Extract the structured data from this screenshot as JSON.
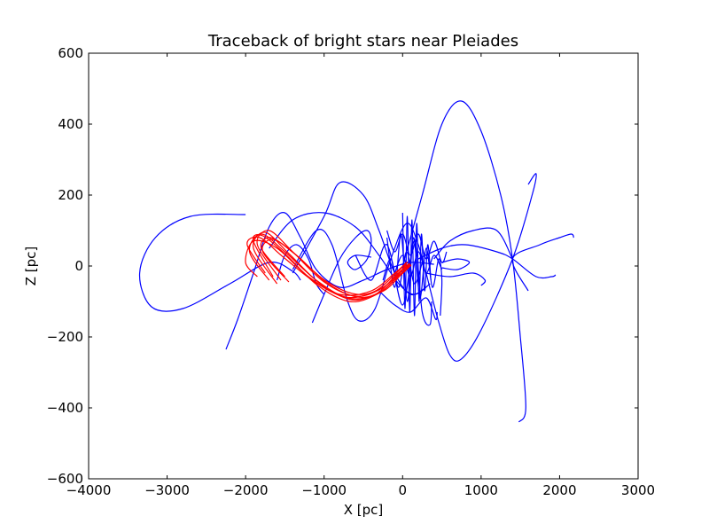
{
  "chart_data": {
    "type": "line",
    "title": "Traceback of bright stars near Pleiades",
    "xlabel": "X [pc]",
    "ylabel": "Z [pc]",
    "xlim": [
      -4000,
      3000
    ],
    "ylim": [
      -600,
      600
    ],
    "xticks": [
      -4000,
      -3000,
      -2000,
      -1000,
      0,
      1000,
      2000,
      3000
    ],
    "yticks": [
      -600,
      -400,
      -200,
      0,
      200,
      400,
      600
    ],
    "xtick_labels": [
      "−4000",
      "−3000",
      "−2000",
      "−1000",
      "0",
      "1000",
      "2000",
      "3000"
    ],
    "ytick_labels": [
      "−600",
      "−400",
      "−200",
      "0",
      "200",
      "400",
      "600"
    ],
    "grid": false,
    "series_colors": {
      "field_stars": "#0000ff",
      "pleiades_members": "#ff0000"
    },
    "series": [
      {
        "group": "field_stars",
        "color": "#0000ff",
        "points": [
          [
            -2000,
            145
          ],
          [
            -2700,
            140
          ],
          [
            -3150,
            80
          ],
          [
            -3350,
            -20
          ],
          [
            -3200,
            -115
          ],
          [
            -2800,
            -120
          ],
          [
            -2200,
            -50
          ],
          [
            -1700,
            10
          ],
          [
            -1400,
            -15
          ],
          [
            -1300,
            -40
          ]
        ]
      },
      {
        "group": "field_stars",
        "color": "#0000ff",
        "points": [
          [
            -2250,
            -235
          ],
          [
            -2100,
            -150
          ],
          [
            -1900,
            -20
          ],
          [
            -1700,
            110
          ],
          [
            -1500,
            150
          ],
          [
            -1300,
            80
          ],
          [
            -1100,
            -10
          ],
          [
            -800,
            -60
          ],
          [
            -500,
            -40
          ],
          [
            -200,
            -10
          ],
          [
            100,
            10
          ],
          [
            400,
            5
          ]
        ]
      },
      {
        "group": "field_stars",
        "color": "#0000ff",
        "points": [
          [
            -1700,
            50
          ],
          [
            -1400,
            130
          ],
          [
            -1000,
            150
          ],
          [
            -600,
            110
          ],
          [
            -300,
            30
          ],
          [
            -50,
            -50
          ],
          [
            150,
            -80
          ],
          [
            350,
            -50
          ]
        ]
      },
      {
        "group": "field_stars",
        "color": "#0000ff",
        "points": [
          [
            -1400,
            -20
          ],
          [
            -1000,
            140
          ],
          [
            -800,
            235
          ],
          [
            -500,
            200
          ],
          [
            -300,
            100
          ],
          [
            -100,
            -20
          ],
          [
            100,
            -80
          ],
          [
            300,
            -60
          ]
        ]
      },
      {
        "group": "field_stars",
        "color": "#0000ff",
        "points": [
          [
            -1400,
            -10
          ],
          [
            -1100,
            100
          ],
          [
            -900,
            60
          ],
          [
            -700,
            -100
          ],
          [
            -550,
            -155
          ],
          [
            -350,
            -120
          ],
          [
            -150,
            20
          ],
          [
            50,
            120
          ],
          [
            200,
            60
          ],
          [
            300,
            -30
          ]
        ]
      },
      {
        "group": "field_stars",
        "color": "#0000ff",
        "points": [
          [
            -1150,
            -160
          ],
          [
            -1000,
            -80
          ],
          [
            -800,
            20
          ],
          [
            -600,
            80
          ],
          [
            -450,
            100
          ],
          [
            -400,
            70
          ],
          [
            -450,
            20
          ],
          [
            -600,
            -10
          ],
          [
            -700,
            10
          ],
          [
            -600,
            30
          ],
          [
            -400,
            25
          ]
        ]
      },
      {
        "group": "field_stars",
        "color": "#0000ff",
        "points": [
          [
            -1600,
            -40
          ],
          [
            -1500,
            30
          ],
          [
            -1350,
            60
          ],
          [
            -1200,
            20
          ],
          [
            -1100,
            -50
          ],
          [
            -1000,
            -80
          ]
        ]
      },
      {
        "group": "field_stars",
        "color": "#0000ff",
        "points": [
          [
            0,
            0
          ],
          [
            250,
            200
          ],
          [
            500,
            400
          ],
          [
            750,
            465
          ],
          [
            1000,
            380
          ],
          [
            1250,
            200
          ],
          [
            1400,
            20
          ],
          [
            1500,
            -200
          ],
          [
            1570,
            -400
          ],
          [
            1480,
            -440
          ]
        ]
      },
      {
        "group": "field_stars",
        "color": "#0000ff",
        "points": [
          [
            1600,
            230
          ],
          [
            1700,
            260
          ],
          [
            1650,
            200
          ],
          [
            1400,
            20
          ],
          [
            1000,
            -180
          ],
          [
            750,
            -262
          ],
          [
            600,
            -250
          ],
          [
            450,
            -150
          ],
          [
            300,
            -20
          ]
        ]
      },
      {
        "group": "field_stars",
        "color": "#0000ff",
        "points": [
          [
            200,
            20
          ],
          [
            500,
            50
          ],
          [
            800,
            60
          ],
          [
            1200,
            40
          ],
          [
            1400,
            20
          ],
          [
            1700,
            -30
          ],
          [
            1900,
            -30
          ],
          [
            1950,
            -25
          ]
        ]
      },
      {
        "group": "field_stars",
        "color": "#0000ff",
        "points": [
          [
            1600,
            -70
          ],
          [
            1400,
            20
          ],
          [
            1750,
            60
          ],
          [
            2000,
            80
          ],
          [
            2150,
            90
          ],
          [
            2180,
            80
          ]
        ]
      },
      {
        "group": "field_stars",
        "color": "#0000ff",
        "points": [
          [
            1400,
            20
          ],
          [
            1200,
            100
          ],
          [
            900,
            100
          ],
          [
            600,
            70
          ],
          [
            400,
            20
          ]
        ]
      },
      {
        "group": "field_stars",
        "color": "#0000ff",
        "points": [
          [
            300,
            -20
          ],
          [
            600,
            -30
          ],
          [
            900,
            -20
          ],
          [
            1050,
            -40
          ],
          [
            1000,
            -55
          ]
        ]
      },
      {
        "group": "field_stars",
        "color": "#0000ff",
        "points": [
          [
            500,
            10
          ],
          [
            700,
            20
          ],
          [
            850,
            10
          ],
          [
            700,
            -10
          ],
          [
            500,
            -5
          ]
        ]
      },
      {
        "group": "field_stars",
        "color": "#0000ff",
        "points": [
          [
            0,
            150
          ],
          [
            30,
            -120
          ],
          [
            60,
            140
          ],
          [
            90,
            -130
          ],
          [
            120,
            130
          ],
          [
            150,
            -140
          ],
          [
            180,
            120
          ],
          [
            210,
            -100
          ],
          [
            240,
            90
          ],
          [
            280,
            -70
          ],
          [
            320,
            60
          ],
          [
            360,
            -40
          ]
        ]
      },
      {
        "group": "field_stars",
        "color": "#0000ff",
        "points": [
          [
            -200,
            80
          ],
          [
            -100,
            -60
          ],
          [
            -20,
            90
          ],
          [
            60,
            -100
          ],
          [
            140,
            80
          ],
          [
            220,
            -90
          ],
          [
            300,
            50
          ],
          [
            380,
            -60
          ],
          [
            460,
            20
          ],
          [
            500,
            -40
          ],
          [
            480,
            -140
          ]
        ]
      },
      {
        "group": "field_stars",
        "color": "#0000ff",
        "points": [
          [
            -600,
            30
          ],
          [
            -400,
            -40
          ],
          [
            -200,
            60
          ],
          [
            0,
            -110
          ],
          [
            150,
            70
          ],
          [
            250,
            -130
          ],
          [
            350,
            -165
          ],
          [
            370,
            -100
          ]
        ]
      },
      {
        "group": "field_stars",
        "color": "#0000ff",
        "points": [
          [
            -300,
            -70
          ],
          [
            -100,
            -110
          ],
          [
            100,
            -130
          ],
          [
            300,
            -90
          ],
          [
            420,
            -150
          ],
          [
            440,
            -130
          ]
        ]
      },
      {
        "group": "field_stars",
        "color": "#0000ff",
        "points": [
          [
            -200,
            100
          ],
          [
            -100,
            40
          ],
          [
            0,
            90
          ],
          [
            100,
            30
          ],
          [
            200,
            90
          ],
          [
            300,
            20
          ],
          [
            400,
            70
          ],
          [
            500,
            10
          ],
          [
            560,
            40
          ]
        ]
      },
      {
        "group": "field_stars",
        "color": "#0000ff",
        "points": [
          [
            -100,
            -20
          ],
          [
            0,
            30
          ],
          [
            100,
            -30
          ],
          [
            200,
            40
          ],
          [
            300,
            -20
          ],
          [
            400,
            30
          ],
          [
            500,
            -10
          ]
        ]
      },
      {
        "group": "field_stars",
        "color": "#0000ff",
        "points": [
          [
            -250,
            -40
          ],
          [
            -150,
            20
          ],
          [
            -50,
            -60
          ],
          [
            50,
            40
          ],
          [
            150,
            -50
          ],
          [
            250,
            10
          ]
        ]
      },
      {
        "group": "pleiades_members",
        "color": "#ff0000",
        "points": [
          [
            -1850,
            -30
          ],
          [
            -2000,
            10
          ],
          [
            -1900,
            70
          ],
          [
            -1600,
            50
          ],
          [
            -1200,
            -30
          ],
          [
            -800,
            -80
          ],
          [
            -400,
            -70
          ],
          [
            -100,
            -20
          ],
          [
            50,
            10
          ]
        ]
      },
      {
        "group": "pleiades_members",
        "color": "#ff0000",
        "points": [
          [
            -1700,
            -40
          ],
          [
            -1950,
            40
          ],
          [
            -1800,
            90
          ],
          [
            -1500,
            40
          ],
          [
            -1100,
            -40
          ],
          [
            -700,
            -90
          ],
          [
            -350,
            -80
          ],
          [
            -80,
            -25
          ],
          [
            70,
            5
          ]
        ]
      },
      {
        "group": "pleiades_members",
        "color": "#ff0000",
        "points": [
          [
            -1600,
            -50
          ],
          [
            -1900,
            50
          ],
          [
            -1750,
            95
          ],
          [
            -1450,
            35
          ],
          [
            -1050,
            -50
          ],
          [
            -650,
            -95
          ],
          [
            -300,
            -75
          ],
          [
            -60,
            -30
          ],
          [
            80,
            0
          ]
        ]
      },
      {
        "group": "pleiades_members",
        "color": "#ff0000",
        "points": [
          [
            -1550,
            -40
          ],
          [
            -1850,
            60
          ],
          [
            -1700,
            100
          ],
          [
            -1400,
            40
          ],
          [
            -1000,
            -45
          ],
          [
            -600,
            -85
          ],
          [
            -280,
            -65
          ],
          [
            -40,
            -20
          ],
          [
            90,
            8
          ]
        ]
      },
      {
        "group": "pleiades_members",
        "color": "#ff0000",
        "points": [
          [
            -1650,
            -30
          ],
          [
            -1900,
            70
          ],
          [
            -1780,
            85
          ],
          [
            -1480,
            30
          ],
          [
            -1080,
            -55
          ],
          [
            -680,
            -100
          ],
          [
            -330,
            -80
          ],
          [
            -70,
            -30
          ],
          [
            60,
            12
          ]
        ]
      },
      {
        "group": "pleiades_members",
        "color": "#ff0000",
        "points": [
          [
            -1750,
            -20
          ],
          [
            -1980,
            60
          ],
          [
            -1820,
            80
          ],
          [
            -1520,
            25
          ],
          [
            -1120,
            -45
          ],
          [
            -720,
            -88
          ],
          [
            -360,
            -72
          ],
          [
            -90,
            -22
          ],
          [
            40,
            8
          ]
        ]
      },
      {
        "group": "pleiades_members",
        "color": "#ff0000",
        "points": [
          [
            -1500,
            -30
          ],
          [
            -1800,
            50
          ],
          [
            -1680,
            80
          ],
          [
            -1380,
            35
          ],
          [
            -980,
            -42
          ],
          [
            -580,
            -80
          ],
          [
            -260,
            -62
          ],
          [
            -30,
            -18
          ],
          [
            100,
            5
          ]
        ]
      },
      {
        "group": "pleiades_members",
        "color": "#ff0000",
        "points": [
          [
            -1450,
            -45
          ],
          [
            -1780,
            40
          ],
          [
            -1650,
            75
          ],
          [
            -1350,
            30
          ],
          [
            -950,
            -50
          ],
          [
            -560,
            -88
          ],
          [
            -240,
            -70
          ],
          [
            -20,
            -25
          ],
          [
            110,
            3
          ]
        ]
      }
    ]
  }
}
